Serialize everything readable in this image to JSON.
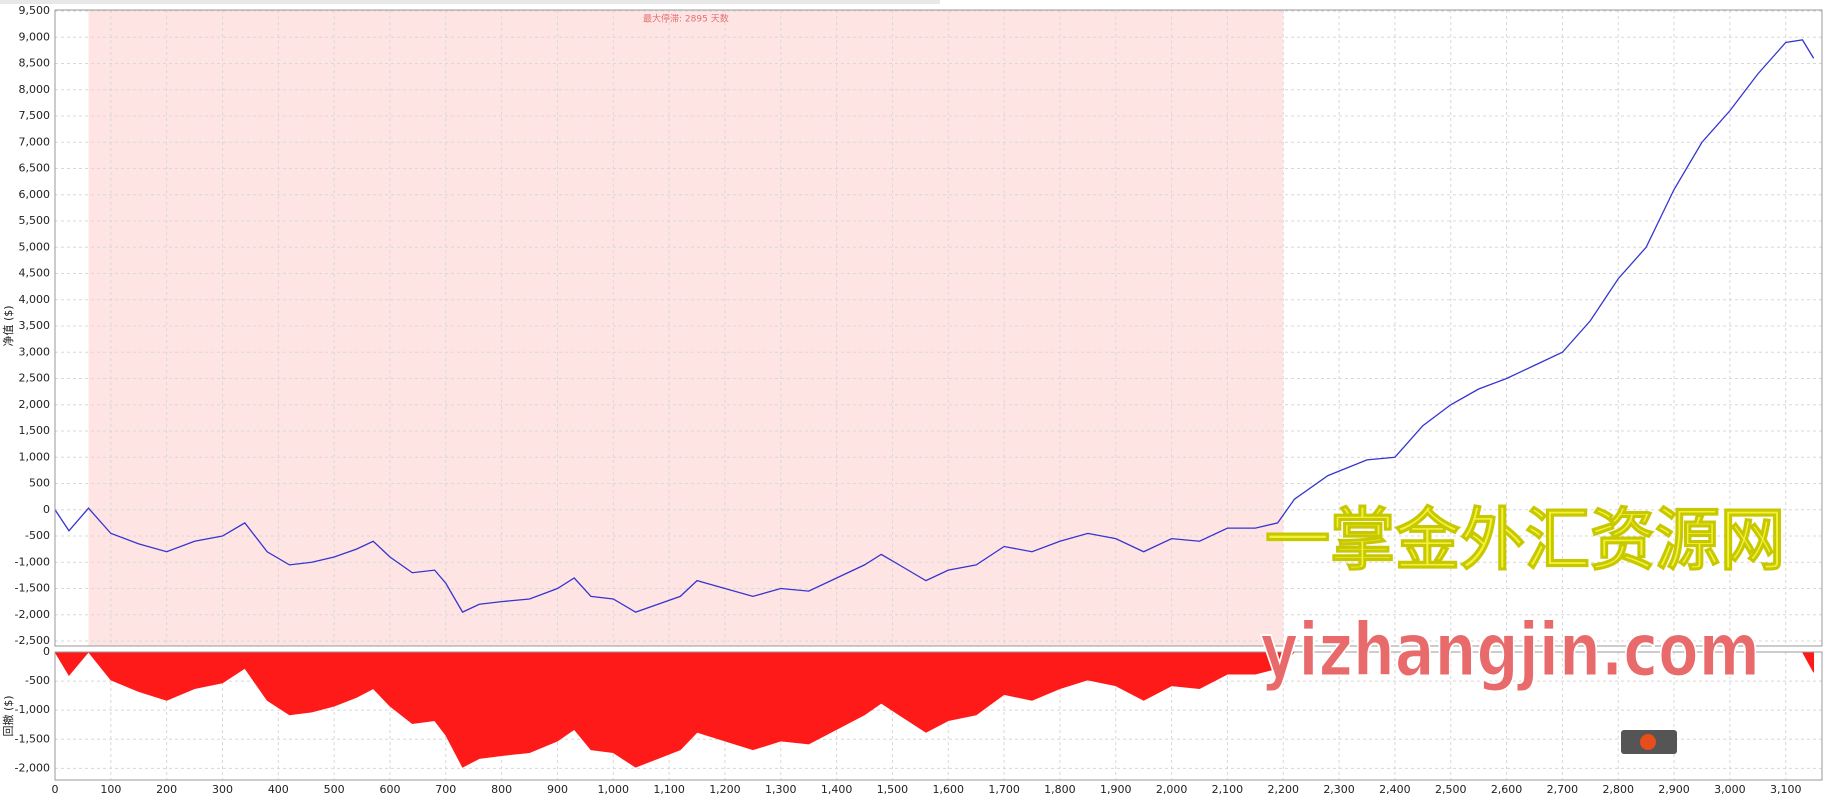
{
  "chart_data": [
    {
      "type": "line",
      "y_label": "净值 ($)",
      "annotation": "最大停滞: 2895 天数",
      "shaded_range": [
        60,
        2200
      ],
      "color": "#3535d0",
      "shade_color": "#ffe4e4",
      "grid": true,
      "x": [
        0,
        25,
        60,
        100,
        150,
        200,
        250,
        300,
        340,
        380,
        420,
        460,
        500,
        540,
        570,
        600,
        640,
        680,
        700,
        730,
        760,
        800,
        850,
        900,
        930,
        960,
        1000,
        1040,
        1080,
        1120,
        1150,
        1200,
        1250,
        1300,
        1350,
        1400,
        1450,
        1480,
        1520,
        1560,
        1600,
        1650,
        1700,
        1750,
        1800,
        1850,
        1900,
        1950,
        2000,
        2050,
        2100,
        2150,
        2190,
        2220,
        2280,
        2350,
        2400,
        2450,
        2500,
        2550,
        2600,
        2650,
        2700,
        2750,
        2800,
        2850,
        2900,
        2950,
        3000,
        3050,
        3100,
        3130,
        3150
      ],
      "values": [
        0,
        -400,
        30,
        -450,
        -650,
        -800,
        -600,
        -500,
        -250,
        -800,
        -1050,
        -1000,
        -900,
        -750,
        -600,
        -900,
        -1200,
        -1150,
        -1400,
        -1950,
        -1800,
        -1750,
        -1700,
        -1500,
        -1300,
        -1650,
        -1700,
        -1950,
        -1800,
        -1650,
        -1350,
        -1500,
        -1650,
        -1500,
        -1550,
        -1300,
        -1050,
        -850,
        -1100,
        -1350,
        -1150,
        -1050,
        -700,
        -800,
        -600,
        -450,
        -550,
        -800,
        -550,
        -600,
        -350,
        -350,
        -250,
        200,
        650,
        950,
        1000,
        1600,
        2000,
        2300,
        2500,
        2750,
        3000,
        3600,
        4400,
        5000,
        6100,
        7000,
        7600,
        8300,
        8900,
        8950,
        8600
      ],
      "xlim": [
        0,
        3165
      ],
      "ylim": [
        -2500,
        9500
      ],
      "yticks": [
        {
          "value": -2500,
          "label": "-2,500"
        },
        {
          "value": -2000,
          "label": "-2,000"
        },
        {
          "value": -1500,
          "label": "-1,500"
        },
        {
          "value": -1000,
          "label": "-1,000"
        },
        -500,
        0,
        500,
        {
          "value": 1000,
          "label": "1,000"
        },
        {
          "value": 1500,
          "label": "1,500"
        },
        {
          "value": 2000,
          "label": "2,000"
        },
        {
          "value": 2500,
          "label": "2,500"
        },
        {
          "value": 3000,
          "label": "3,000"
        },
        {
          "value": 3500,
          "label": "3,500"
        },
        {
          "value": 4000,
          "label": "4,000"
        },
        {
          "value": 4500,
          "label": "4,500"
        },
        {
          "value": 5000,
          "label": "5,000"
        },
        {
          "value": 5500,
          "label": "5,500"
        },
        {
          "value": 6000,
          "label": "6,000"
        },
        {
          "value": 6500,
          "label": "6,500"
        },
        {
          "value": 7000,
          "label": "7,000"
        },
        {
          "value": 7500,
          "label": "7,500"
        },
        {
          "value": 8000,
          "label": "8,000"
        },
        {
          "value": 8500,
          "label": "8,500"
        },
        {
          "value": 9000,
          "label": "9,000"
        },
        {
          "value": 9500,
          "label": "9,500"
        }
      ]
    },
    {
      "type": "area",
      "y_label": "回撤 ($)",
      "color": "#ff1a1a",
      "grid": true,
      "x": [
        0,
        25,
        60,
        100,
        150,
        200,
        250,
        300,
        340,
        380,
        420,
        460,
        500,
        540,
        570,
        600,
        640,
        680,
        700,
        730,
        760,
        800,
        850,
        900,
        930,
        960,
        1000,
        1040,
        1080,
        1120,
        1150,
        1200,
        1250,
        1300,
        1350,
        1400,
        1450,
        1480,
        1520,
        1560,
        1600,
        1650,
        1700,
        1750,
        1800,
        1850,
        1900,
        1950,
        2000,
        2050,
        2100,
        2150,
        2190,
        2220,
        2280,
        2350,
        2400,
        2450,
        2500,
        2550,
        2600,
        2650,
        2700,
        2750,
        2800,
        2850,
        2900,
        2950,
        3000,
        3050,
        3100,
        3130,
        3150
      ],
      "values": [
        0,
        -400,
        0,
        -480,
        -680,
        -830,
        -630,
        -530,
        -280,
        -830,
        -1080,
        -1030,
        -930,
        -780,
        -630,
        -930,
        -1230,
        -1180,
        -1430,
        -1980,
        -1830,
        -1780,
        -1730,
        -1530,
        -1330,
        -1680,
        -1730,
        -1980,
        -1830,
        -1680,
        -1380,
        -1530,
        -1680,
        -1530,
        -1580,
        -1330,
        -1080,
        -880,
        -1130,
        -1380,
        -1180,
        -1080,
        -730,
        -830,
        -630,
        -480,
        -580,
        -830,
        -580,
        -630,
        -380,
        -380,
        -280,
        0,
        0,
        0,
        0,
        0,
        0,
        0,
        0,
        0,
        0,
        0,
        0,
        0,
        0,
        0,
        0,
        0,
        0,
        0,
        -350
      ],
      "xlim": [
        0,
        3165
      ],
      "ylim": [
        -2200,
        0
      ],
      "yticks": [
        0,
        -500,
        {
          "value": -1000,
          "label": "-1,000"
        },
        {
          "value": -1500,
          "label": "-1,500"
        },
        {
          "value": -2000,
          "label": "-2,000"
        }
      ],
      "xticks": [
        0,
        100,
        200,
        300,
        400,
        500,
        600,
        700,
        800,
        900,
        {
          "value": 1000,
          "label": "1,000"
        },
        {
          "value": 1100,
          "label": "1,100"
        },
        {
          "value": 1200,
          "label": "1,200"
        },
        {
          "value": 1300,
          "label": "1,300"
        },
        {
          "value": 1400,
          "label": "1,400"
        },
        {
          "value": 1500,
          "label": "1,500"
        },
        {
          "value": 1600,
          "label": "1,600"
        },
        {
          "value": 1700,
          "label": "1,700"
        },
        {
          "value": 1800,
          "label": "1,800"
        },
        {
          "value": 1900,
          "label": "1,900"
        },
        {
          "value": 2000,
          "label": "2,000"
        },
        {
          "value": 2100,
          "label": "2,100"
        },
        {
          "value": 2200,
          "label": "2,200"
        },
        {
          "value": 2300,
          "label": "2,300"
        },
        {
          "value": 2400,
          "label": "2,400"
        },
        {
          "value": 2500,
          "label": "2,500"
        },
        {
          "value": 2600,
          "label": "2,600"
        },
        {
          "value": 2700,
          "label": "2,700"
        },
        {
          "value": 2800,
          "label": "2,800"
        },
        {
          "value": 2900,
          "label": "2,900"
        },
        {
          "value": 3000,
          "label": "3,000"
        },
        {
          "value": 3100,
          "label": "3,100"
        }
      ]
    }
  ],
  "watermark": {
    "line1": "一掌金外汇资源网",
    "line2": "yizhangjin.com"
  }
}
